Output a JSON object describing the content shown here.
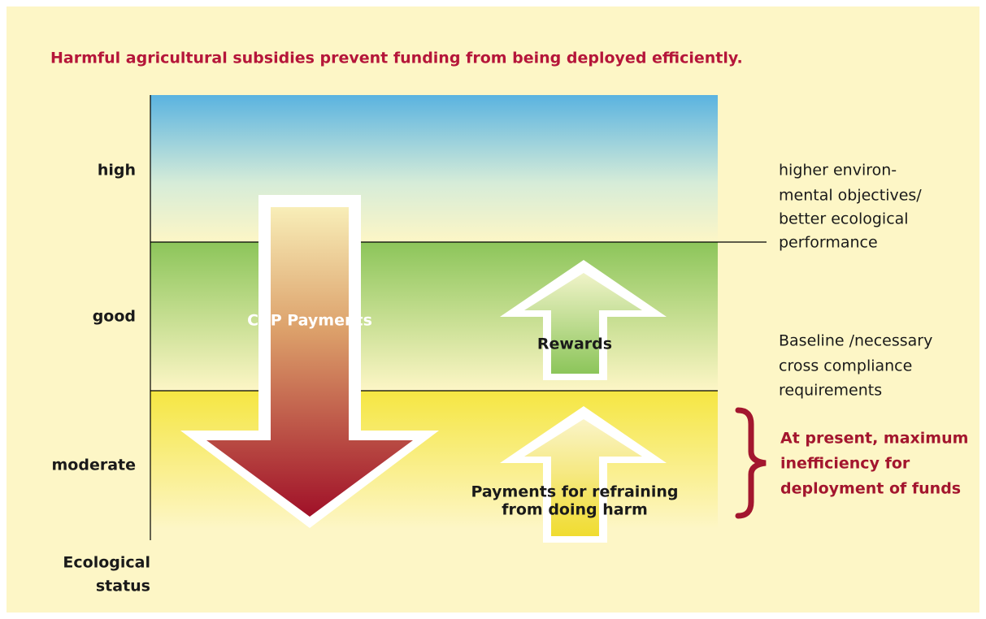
{
  "title": "Harmful agricultural subsidies prevent funding from being deployed efficiently.",
  "levels": [
    "high",
    "good",
    "moderate"
  ],
  "axis_label": [
    "Ecological",
    "status"
  ],
  "arrows": {
    "cap": "CAP Payments",
    "rewards": "Rewards",
    "refraining": [
      "Payments for refraining",
      "from doing harm"
    ]
  },
  "annotations": {
    "higher": [
      "higher environ-",
      "mental objectives/",
      "better ecological",
      "performance"
    ],
    "baseline": [
      "Baseline /necessary",
      "cross compliance",
      "requirements"
    ],
    "inefficiency": [
      "At present, maximum",
      "inefficiency for",
      "deployment of funds"
    ]
  }
}
